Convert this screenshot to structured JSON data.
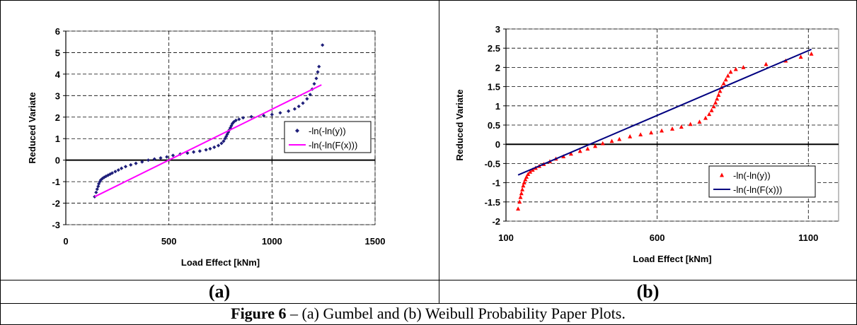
{
  "figure": {
    "label_a": "(a)",
    "label_b": "(b)",
    "caption_bold": "Figure 6",
    "caption_rest": " – (a) Gumbel and (b) Weibull Probability Paper Plots."
  },
  "chart_data": [
    {
      "type": "scatter",
      "xlabel": "Load Effect [kNm]",
      "ylabel": "Reduced Variate",
      "xlim": [
        0,
        1500
      ],
      "ylim": [
        -3,
        6
      ],
      "xticks": [
        0,
        500,
        1000,
        1500
      ],
      "yticks": [
        -3,
        -2,
        -1,
        0,
        1,
        2,
        3,
        4,
        5,
        6
      ],
      "grid": "dashed horizontal and vertical",
      "legend_placement": "right-middle",
      "series": [
        {
          "name": "-ln(-ln(y))",
          "kind": "points",
          "marker": "diamond",
          "color": "#1f1f7a",
          "points": [
            [
              140,
              -1.7
            ],
            [
              147,
              -1.5
            ],
            [
              152,
              -1.35
            ],
            [
              157,
              -1.22
            ],
            [
              160,
              -1.1
            ],
            [
              165,
              -1.0
            ],
            [
              170,
              -0.92
            ],
            [
              178,
              -0.85
            ],
            [
              186,
              -0.8
            ],
            [
              195,
              -0.75
            ],
            [
              205,
              -0.7
            ],
            [
              215,
              -0.65
            ],
            [
              225,
              -0.6
            ],
            [
              240,
              -0.53
            ],
            [
              255,
              -0.46
            ],
            [
              270,
              -0.38
            ],
            [
              290,
              -0.3
            ],
            [
              315,
              -0.22
            ],
            [
              340,
              -0.15
            ],
            [
              370,
              -0.08
            ],
            [
              400,
              0.0
            ],
            [
              430,
              0.05
            ],
            [
              460,
              0.1
            ],
            [
              490,
              0.15
            ],
            [
              520,
              0.22
            ],
            [
              555,
              0.28
            ],
            [
              590,
              0.33
            ],
            [
              620,
              0.38
            ],
            [
              650,
              0.42
            ],
            [
              680,
              0.48
            ],
            [
              700,
              0.53
            ],
            [
              720,
              0.6
            ],
            [
              740,
              0.68
            ],
            [
              755,
              0.78
            ],
            [
              765,
              0.88
            ],
            [
              772,
              1.0
            ],
            [
              778,
              1.1
            ],
            [
              783,
              1.2
            ],
            [
              788,
              1.3
            ],
            [
              793,
              1.4
            ],
            [
              798,
              1.5
            ],
            [
              803,
              1.6
            ],
            [
              808,
              1.7
            ],
            [
              815,
              1.78
            ],
            [
              825,
              1.85
            ],
            [
              840,
              1.9
            ],
            [
              860,
              1.97
            ],
            [
              900,
              2.02
            ],
            [
              960,
              2.07
            ],
            [
              1000,
              2.12
            ],
            [
              1040,
              2.2
            ],
            [
              1080,
              2.28
            ],
            [
              1110,
              2.38
            ],
            [
              1130,
              2.5
            ],
            [
              1150,
              2.65
            ],
            [
              1170,
              2.85
            ],
            [
              1185,
              3.05
            ],
            [
              1195,
              3.3
            ],
            [
              1205,
              3.55
            ],
            [
              1215,
              3.8
            ],
            [
              1222,
              4.1
            ],
            [
              1228,
              4.35
            ],
            [
              1245,
              5.35
            ]
          ]
        },
        {
          "name": "-ln(-ln(F(x)))",
          "kind": "line",
          "color": "#ff00ff",
          "points": [
            [
              140,
              -1.7
            ],
            [
              1240,
              3.5
            ]
          ]
        }
      ]
    },
    {
      "type": "scatter",
      "xlabel": "Load Effect [kNm]",
      "ylabel": "Reduced Variate",
      "xlim": [
        100,
        1200
      ],
      "ylim": [
        -2,
        3
      ],
      "xticks": [
        100,
        600,
        1100
      ],
      "yticks": [
        -2,
        -1.5,
        -1,
        -0.5,
        0,
        0.5,
        1,
        1.5,
        2,
        2.5,
        3
      ],
      "grid": "dashed horizontal and vertical",
      "legend_placement": "right-bottom",
      "series": [
        {
          "name": "-ln(-ln(y))",
          "kind": "points",
          "marker": "triangle",
          "color": "#ff0000",
          "points": [
            [
              140,
              -1.68
            ],
            [
              145,
              -1.5
            ],
            [
              148,
              -1.38
            ],
            [
              151,
              -1.28
            ],
            [
              154,
              -1.18
            ],
            [
              157,
              -1.08
            ],
            [
              160,
              -1.0
            ],
            [
              164,
              -0.92
            ],
            [
              168,
              -0.85
            ],
            [
              173,
              -0.78
            ],
            [
              180,
              -0.72
            ],
            [
              188,
              -0.67
            ],
            [
              198,
              -0.62
            ],
            [
              210,
              -0.57
            ],
            [
              225,
              -0.52
            ],
            [
              245,
              -0.45
            ],
            [
              265,
              -0.38
            ],
            [
              290,
              -0.32
            ],
            [
              315,
              -0.25
            ],
            [
              345,
              -0.18
            ],
            [
              370,
              -0.12
            ],
            [
              395,
              -0.05
            ],
            [
              420,
              0.02
            ],
            [
              450,
              0.08
            ],
            [
              475,
              0.13
            ],
            [
              510,
              0.2
            ],
            [
              545,
              0.25
            ],
            [
              580,
              0.3
            ],
            [
              615,
              0.35
            ],
            [
              650,
              0.4
            ],
            [
              680,
              0.45
            ],
            [
              710,
              0.52
            ],
            [
              740,
              0.58
            ],
            [
              760,
              0.68
            ],
            [
              772,
              0.78
            ],
            [
              780,
              0.88
            ],
            [
              787,
              0.98
            ],
            [
              793,
              1.08
            ],
            [
              798,
              1.18
            ],
            [
              803,
              1.28
            ],
            [
              808,
              1.38
            ],
            [
              813,
              1.48
            ],
            [
              820,
              1.58
            ],
            [
              827,
              1.68
            ],
            [
              834,
              1.78
            ],
            [
              843,
              1.88
            ],
            [
              860,
              1.95
            ],
            [
              885,
              2.0
            ],
            [
              960,
              2.08
            ],
            [
              1025,
              2.17
            ],
            [
              1075,
              2.27
            ],
            [
              1110,
              2.35
            ]
          ]
        },
        {
          "name": "-ln(-ln(F(x)))",
          "kind": "line",
          "color": "#000080",
          "points": [
            [
              140,
              -0.8
            ],
            [
              1110,
              2.47
            ]
          ]
        }
      ]
    }
  ]
}
